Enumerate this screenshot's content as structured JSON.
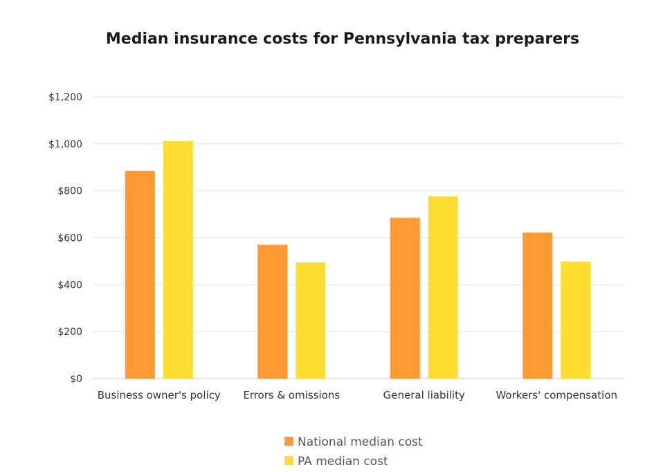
{
  "chart_data": {
    "type": "bar",
    "title": "Median insurance costs for Pennsylvania tax preparers",
    "xlabel": "",
    "ylabel": "",
    "categories": [
      "Business owner's policy",
      "Errors & omissions",
      "General liability",
      "Workers' compensation"
    ],
    "series": [
      {
        "name": "National median cost",
        "color": "#FF9933",
        "values": [
          885,
          570,
          685,
          622
        ]
      },
      {
        "name": "PA median cost",
        "color": "#FFDD33",
        "values": [
          1012,
          495,
          777,
          498
        ]
      }
    ],
    "ylim": [
      0,
      1200
    ],
    "yticks": [
      0,
      200,
      400,
      600,
      800,
      1000,
      1200
    ],
    "ytick_labels": [
      "$0",
      "$200",
      "$400",
      "$600",
      "$800",
      "$1,000",
      "$1,200"
    ],
    "grid": true,
    "legend_position": "bottom"
  }
}
